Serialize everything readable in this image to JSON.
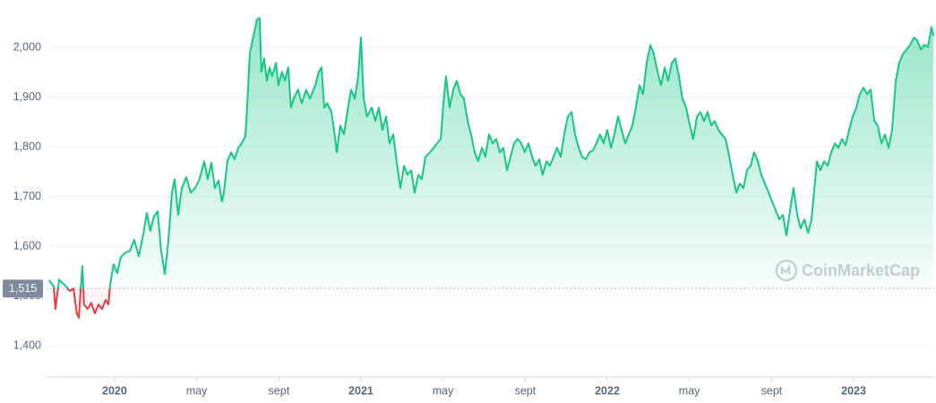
{
  "chart_data": {
    "type": "line",
    "x": [
      2019.734,
      2019.753,
      2019.76,
      2019.775,
      2019.796,
      2019.818,
      2019.833,
      2019.847,
      2019.855,
      2019.869,
      2019.876,
      2019.891,
      2019.905,
      2019.92,
      2019.935,
      2019.949,
      2019.964,
      2019.975,
      2019.982,
      2019.996,
      2020.011,
      2020.025,
      2020.044,
      2020.062,
      2020.08,
      2020.098,
      2020.116,
      2020.131,
      2020.145,
      2020.16,
      2020.175,
      2020.189,
      2020.204,
      2020.218,
      2020.233,
      2020.244,
      2020.258,
      2020.273,
      2020.291,
      2020.309,
      2020.327,
      2020.345,
      2020.364,
      2020.378,
      2020.393,
      2020.407,
      2020.422,
      2020.436,
      2020.444,
      2020.458,
      2020.473,
      2020.487,
      2020.502,
      2020.516,
      2020.531,
      2020.538,
      2020.549,
      2020.564,
      2020.578,
      2020.589,
      2020.596,
      2020.607,
      2020.618,
      2020.629,
      2020.64,
      2020.655,
      2020.665,
      2020.68,
      2020.691,
      2020.705,
      2020.716,
      2020.727,
      2020.745,
      2020.76,
      2020.778,
      2020.793,
      2020.815,
      2020.829,
      2020.84,
      2020.851,
      2020.862,
      2020.88,
      2020.891,
      2020.902,
      2020.916,
      2020.931,
      2020.945,
      2020.96,
      2020.975,
      2020.989,
      2021.0,
      2021.011,
      2021.025,
      2021.044,
      2021.058,
      2021.073,
      2021.087,
      2021.102,
      2021.116,
      2021.131,
      2021.145,
      2021.16,
      2021.175,
      2021.189,
      2021.204,
      2021.218,
      2021.233,
      2021.247,
      2021.262,
      2021.28,
      2021.295,
      2021.309,
      2021.324,
      2021.335,
      2021.345,
      2021.36,
      2021.375,
      2021.389,
      2021.404,
      2021.418,
      2021.433,
      2021.447,
      2021.462,
      2021.476,
      2021.491,
      2021.505,
      2021.52,
      2021.535,
      2021.549,
      2021.564,
      2021.578,
      2021.593,
      2021.607,
      2021.622,
      2021.636,
      2021.651,
      2021.665,
      2021.68,
      2021.695,
      2021.709,
      2021.724,
      2021.738,
      2021.753,
      2021.767,
      2021.782,
      2021.796,
      2021.811,
      2021.825,
      2021.84,
      2021.855,
      2021.869,
      2021.884,
      2021.898,
      2021.913,
      2021.927,
      2021.942,
      2021.956,
      2021.971,
      2021.985,
      2022.0,
      2022.015,
      2022.029,
      2022.044,
      2022.058,
      2022.073,
      2022.087,
      2022.102,
      2022.116,
      2022.131,
      2022.145,
      2022.16,
      2022.175,
      2022.189,
      2022.204,
      2022.218,
      2022.233,
      2022.247,
      2022.262,
      2022.276,
      2022.291,
      2022.305,
      2022.32,
      2022.335,
      2022.349,
      2022.364,
      2022.378,
      2022.393,
      2022.407,
      2022.422,
      2022.436,
      2022.451,
      2022.465,
      2022.48,
      2022.495,
      2022.509,
      2022.524,
      2022.538,
      2022.553,
      2022.567,
      2022.582,
      2022.596,
      2022.611,
      2022.625,
      2022.64,
      2022.655,
      2022.669,
      2022.684,
      2022.698,
      2022.713,
      2022.727,
      2022.742,
      2022.756,
      2022.771,
      2022.785,
      2022.8,
      2022.815,
      2022.829,
      2022.844,
      2022.851,
      2022.865,
      2022.88,
      2022.895,
      2022.909,
      2022.924,
      2022.938,
      2022.953,
      2022.967,
      2022.982,
      2022.996,
      2023.011,
      2023.025,
      2023.04,
      2023.055,
      2023.069,
      2023.084,
      2023.098,
      2023.113,
      2023.127,
      2023.142,
      2023.156,
      2023.171,
      2023.185,
      2023.2,
      2023.215,
      2023.229,
      2023.244,
      2023.258,
      2023.273,
      2023.287,
      2023.302,
      2023.316,
      2023.324
    ],
    "values": [
      1532,
      1519,
      1474,
      1533,
      1523,
      1510,
      1515,
      1465,
      1456,
      1560,
      1483,
      1474,
      1486,
      1465,
      1483,
      1474,
      1492,
      1483,
      1523,
      1564,
      1546,
      1578,
      1587,
      1591,
      1613,
      1580,
      1622,
      1667,
      1631,
      1660,
      1670,
      1591,
      1544,
      1609,
      1708,
      1735,
      1663,
      1717,
      1739,
      1708,
      1717,
      1735,
      1771,
      1735,
      1768,
      1717,
      1732,
      1690,
      1708,
      1771,
      1789,
      1775,
      1798,
      1807,
      1822,
      1879,
      1987,
      2023,
      2056,
      2059,
      1951,
      1978,
      1933,
      1960,
      1942,
      1969,
      1924,
      1951,
      1933,
      1960,
      1879,
      1897,
      1915,
      1888,
      1915,
      1897,
      1924,
      1951,
      1960,
      1879,
      1888,
      1870,
      1834,
      1789,
      1843,
      1825,
      1870,
      1915,
      1897,
      1942,
      2020,
      1897,
      1861,
      1879,
      1852,
      1879,
      1834,
      1861,
      1807,
      1825,
      1771,
      1717,
      1762,
      1744,
      1753,
      1708,
      1744,
      1735,
      1780,
      1789,
      1798,
      1807,
      1816,
      1888,
      1942,
      1879,
      1915,
      1933,
      1906,
      1897,
      1852,
      1825,
      1789,
      1771,
      1798,
      1780,
      1825,
      1807,
      1816,
      1789,
      1798,
      1753,
      1780,
      1807,
      1816,
      1807,
      1789,
      1807,
      1780,
      1762,
      1775,
      1744,
      1771,
      1762,
      1780,
      1798,
      1780,
      1825,
      1861,
      1870,
      1825,
      1798,
      1780,
      1775,
      1789,
      1793,
      1807,
      1825,
      1807,
      1834,
      1798,
      1825,
      1861,
      1834,
      1807,
      1825,
      1843,
      1879,
      1924,
      1906,
      1969,
      2005,
      1987,
      1951,
      1924,
      1960,
      1933,
      1969,
      1978,
      1942,
      1897,
      1879,
      1843,
      1816,
      1861,
      1870,
      1852,
      1870,
      1843,
      1852,
      1834,
      1825,
      1816,
      1780,
      1744,
      1708,
      1726,
      1717,
      1753,
      1762,
      1789,
      1771,
      1744,
      1726,
      1708,
      1690,
      1672,
      1654,
      1663,
      1622,
      1672,
      1717,
      1663,
      1636,
      1654,
      1627,
      1654,
      1735,
      1771,
      1753,
      1771,
      1762,
      1789,
      1807,
      1798,
      1816,
      1803,
      1834,
      1861,
      1879,
      1906,
      1919,
      1906,
      1915,
      1852,
      1843,
      1807,
      1825,
      1798,
      1834,
      1933,
      1969,
      1987,
      1996,
      2005,
      2020,
      2014,
      1996,
      2005,
      2001,
      2041,
      2023
    ],
    "color": "#16c784",
    "color_below": "#ea3943",
    "reference": {
      "value": 1515,
      "label": "1,515"
    },
    "xlim": [
      2019.724,
      2023.327
    ],
    "xticks": [
      2020,
      {
        "value": 2020.333,
        "label": "may"
      },
      {
        "value": 2020.667,
        "label": "sept"
      },
      2021,
      {
        "value": 2021.333,
        "label": "may"
      },
      {
        "value": 2021.667,
        "label": "sept"
      },
      2022,
      {
        "value": 2022.333,
        "label": "may"
      },
      {
        "value": 2022.667,
        "label": "sept"
      },
      2023
    ],
    "ylim": [
      1337,
      2081
    ],
    "yticks": [
      {
        "value": 1400,
        "label": "1,400"
      },
      {
        "value": 1500,
        "label": "1,500"
      },
      {
        "value": 1600,
        "label": "1,600"
      },
      {
        "value": 1700,
        "label": "1,700"
      },
      {
        "value": 1800,
        "label": "1,800"
      },
      {
        "value": 1900,
        "label": "1,900"
      },
      {
        "value": 2000,
        "label": "2,000"
      }
    ],
    "grid": true,
    "watermark": "CoinMarketCap"
  }
}
